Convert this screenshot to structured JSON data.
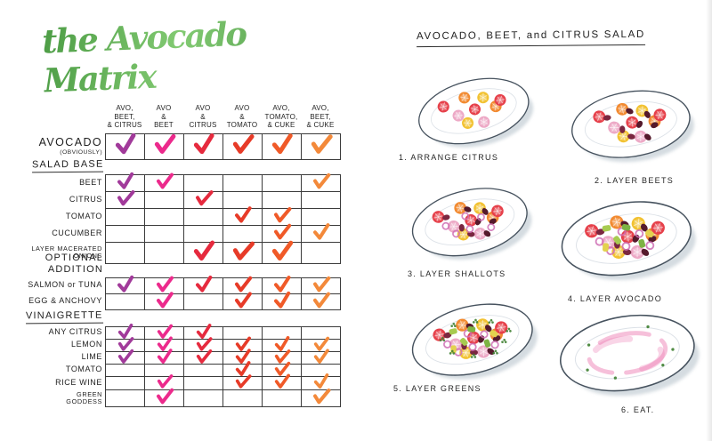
{
  "left_page": {
    "title": "the Avocado Matrix",
    "title_color": "#57a94e",
    "columns": [
      {
        "lines": [
          "AVO,",
          "BEET,",
          "& CITRUS"
        ],
        "check_color": "#a13a9a"
      },
      {
        "lines": [
          "AVO",
          "&",
          "BEET"
        ],
        "check_color": "#ec2a8c"
      },
      {
        "lines": [
          "AVO",
          "&",
          "CITRUS"
        ],
        "check_color": "#e62a3e"
      },
      {
        "lines": [
          "AVO",
          "&",
          "TOMATO"
        ],
        "check_color": "#e73b28"
      },
      {
        "lines": [
          "AVO,",
          "TOMATO,",
          "& CUKE"
        ],
        "check_color": "#f05a28"
      },
      {
        "lines": [
          "AVO,",
          "BEET,",
          "& CUKE"
        ],
        "check_color": "#f3893a"
      }
    ],
    "sections": [
      {
        "header": "",
        "underline": false,
        "rows": [
          {
            "label": "AVOCADO",
            "sublabel": "(OBVIOUSLY)",
            "checks": [
              1,
              1,
              1,
              1,
              1,
              1
            ]
          }
        ]
      },
      {
        "header": "SALAD BASE",
        "underline": true,
        "rows": [
          {
            "label": "BEET",
            "checks": [
              1,
              1,
              0,
              0,
              0,
              1
            ]
          },
          {
            "label": "CITRUS",
            "checks": [
              1,
              0,
              1,
              0,
              0,
              0
            ]
          },
          {
            "label": "TOMATO",
            "checks": [
              0,
              0,
              0,
              1,
              1,
              0
            ]
          },
          {
            "label": "CUCUMBER",
            "checks": [
              0,
              0,
              0,
              0,
              1,
              1
            ]
          },
          {
            "label": "LAYER MACERATED\nONIONS",
            "checks": [
              0,
              0,
              1,
              1,
              1,
              0
            ]
          }
        ]
      },
      {
        "header": "OPTIONAL\nADDITION",
        "underline": false,
        "rows": [
          {
            "label": "SALMON or TUNA",
            "checks": [
              1,
              1,
              1,
              1,
              1,
              1
            ]
          },
          {
            "label": "EGG & ANCHOVY",
            "checks": [
              0,
              1,
              0,
              1,
              1,
              1
            ]
          }
        ]
      },
      {
        "header": "VINAIGRETTE",
        "underline": true,
        "rows": [
          {
            "label": "ANY CITRUS",
            "checks": [
              1,
              1,
              1,
              0,
              0,
              0
            ]
          },
          {
            "label": "LEMON",
            "checks": [
              1,
              1,
              1,
              1,
              1,
              1
            ]
          },
          {
            "label": "LIME",
            "checks": [
              1,
              1,
              1,
              1,
              1,
              1
            ]
          },
          {
            "label": "TOMATO",
            "checks": [
              0,
              0,
              0,
              1,
              1,
              0
            ]
          },
          {
            "label": "RICE WINE",
            "checks": [
              0,
              1,
              0,
              1,
              1,
              1
            ]
          },
          {
            "label": "GREEN\nGODDESS",
            "checks": [
              0,
              1,
              0,
              0,
              0,
              1
            ]
          }
        ]
      }
    ]
  },
  "right_page": {
    "title": "AVOCADO, BEET, and CITRUS SALAD",
    "steps": [
      {
        "caption": "1. ARRANGE CITRUS",
        "layers": [
          "citrus"
        ]
      },
      {
        "caption": "2. LAYER BEETS",
        "layers": [
          "citrus",
          "beets"
        ]
      },
      {
        "caption": "3. LAYER SHALLOTS",
        "layers": [
          "citrus",
          "beets",
          "shallots"
        ]
      },
      {
        "caption": "4. LAYER AVOCADO",
        "layers": [
          "citrus",
          "beets",
          "shallots",
          "avocado"
        ]
      },
      {
        "caption": "5. LAYER GREENS",
        "layers": [
          "citrus",
          "beets",
          "shallots",
          "avocado",
          "greens"
        ]
      },
      {
        "caption": "6. EAT.",
        "layers": [
          "smear"
        ]
      }
    ],
    "palette": {
      "citrus": [
        "#e6404a",
        "#f28a30",
        "#f2c232",
        "#eda9c6"
      ],
      "beets": "#551a2c",
      "beets_light": "#7a2740",
      "shallots": "#cf6fb4",
      "avocado": [
        "#a7cb50",
        "#7db344",
        "#e3d24e"
      ],
      "greens": "#3e7f31",
      "smear": "#ec74ae",
      "plate_stroke": "#46525e",
      "plate_shadow": "#b3bfc9"
    }
  }
}
